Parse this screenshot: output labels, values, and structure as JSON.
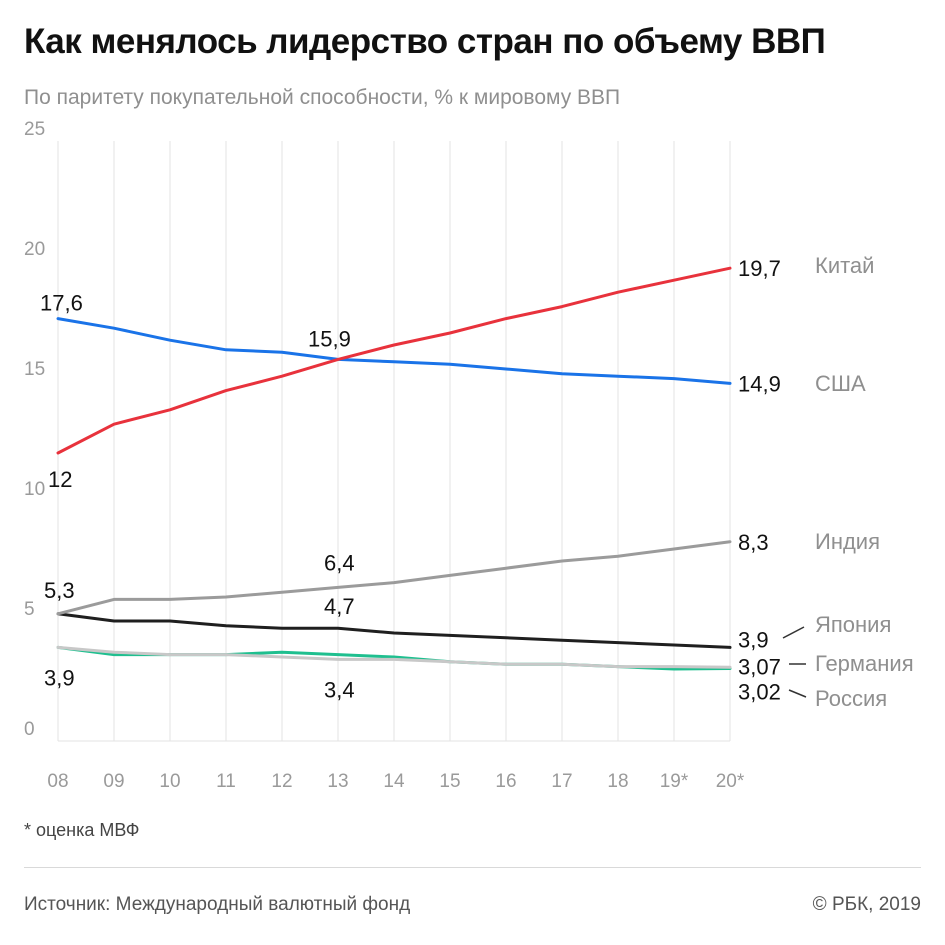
{
  "header": {
    "title": "Как менялось лидерство стран по объему ВВП",
    "subtitle": "По паритету покупательной способности, % к мировому ВВП"
  },
  "chart_data": {
    "type": "line",
    "categories": [
      "08",
      "09",
      "10",
      "11",
      "12",
      "13",
      "14",
      "15",
      "16",
      "17",
      "18",
      "19*",
      "20*"
    ],
    "ylim": [
      0,
      25
    ],
    "yticks": [
      0,
      5,
      10,
      15,
      20,
      25
    ],
    "grid": "vertical",
    "series": [
      {
        "name": "Китай",
        "color": "#e8323c",
        "values": [
          12,
          13.2,
          13.8,
          14.6,
          15.2,
          15.9,
          16.5,
          17.0,
          17.6,
          18.1,
          18.7,
          19.2,
          19.7
        ]
      },
      {
        "name": "США",
        "color": "#1a73e8",
        "values": [
          17.6,
          17.2,
          16.7,
          16.3,
          16.2,
          15.9,
          15.8,
          15.7,
          15.5,
          15.3,
          15.2,
          15.1,
          14.9
        ]
      },
      {
        "name": "Индия",
        "color": "#9b9b9b",
        "values": [
          5.3,
          5.9,
          5.9,
          6.0,
          6.2,
          6.4,
          6.6,
          6.9,
          7.2,
          7.5,
          7.7,
          8.0,
          8.3
        ]
      },
      {
        "name": "Япония",
        "color": "#1f1f1f",
        "values": [
          5.3,
          5.0,
          5.0,
          4.8,
          4.7,
          4.7,
          4.5,
          4.4,
          4.3,
          4.2,
          4.1,
          4.0,
          3.9
        ]
      },
      {
        "name": "Германия",
        "color": "#c8c8c8",
        "values": [
          3.9,
          3.7,
          3.6,
          3.6,
          3.5,
          3.4,
          3.4,
          3.3,
          3.2,
          3.2,
          3.1,
          3.1,
          3.07
        ]
      },
      {
        "name": "Россия",
        "color": "#1fbf8f",
        "values": [
          3.9,
          3.6,
          3.6,
          3.6,
          3.7,
          3.6,
          3.5,
          3.3,
          3.2,
          3.2,
          3.1,
          3.0,
          3.02
        ]
      }
    ],
    "data_labels": [
      {
        "text": "17,6",
        "series": "США",
        "index": 0
      },
      {
        "text": "12",
        "series": "Китай",
        "index": 0
      },
      {
        "text": "15,9",
        "series": "Китай",
        "index": 5
      },
      {
        "text": "5,3",
        "series": "Индия",
        "index": 0
      },
      {
        "text": "6,4",
        "series": "Индия",
        "index": 5
      },
      {
        "text": "4,7",
        "series": "Япония",
        "index": 5
      },
      {
        "text": "3,9",
        "series": "Германия",
        "index": 0
      },
      {
        "text": "3,4",
        "series": "Германия",
        "index": 5
      },
      {
        "text": "19,7",
        "series": "Китай",
        "index": 12
      },
      {
        "text": "14,9",
        "series": "США",
        "index": 12
      },
      {
        "text": "8,3",
        "series": "Индия",
        "index": 12
      },
      {
        "text": "3,9",
        "series": "Япония",
        "index": 12
      },
      {
        "text": "3,07",
        "series": "Германия",
        "index": 12
      },
      {
        "text": "3,02",
        "series": "Россия",
        "index": 12
      }
    ]
  },
  "footnote": "* оценка МВФ",
  "footer": {
    "source": "Источник: Международный валютный фонд",
    "copyright": "© РБК, 2019"
  }
}
